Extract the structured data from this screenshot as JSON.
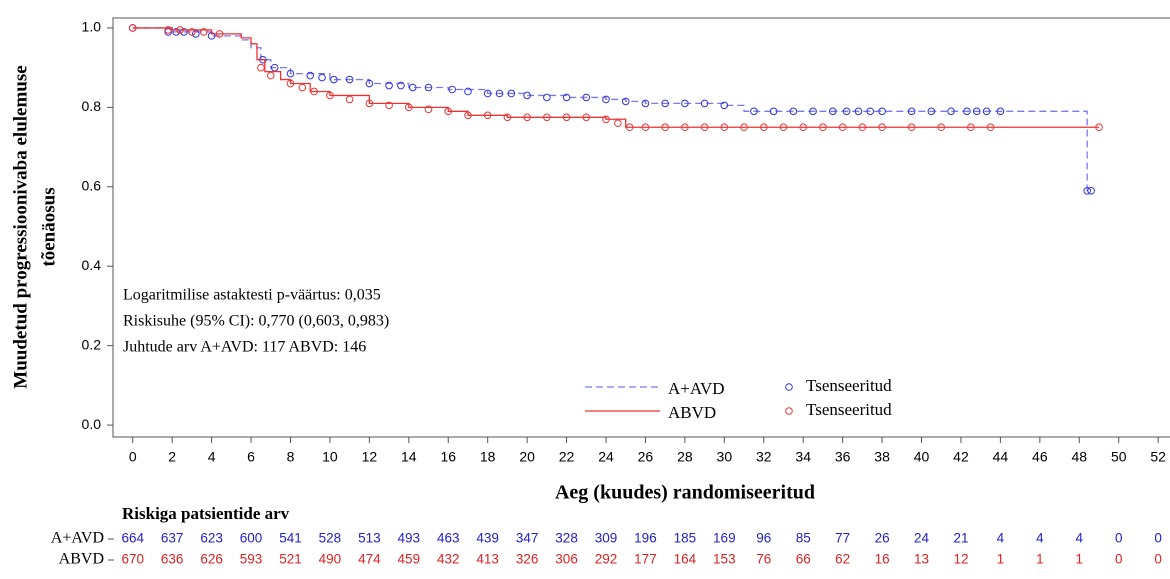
{
  "chart_data": {
    "type": "kaplan-meier",
    "y_label_lines": [
      "Muudetud progressioonivaba elulemuse",
      "tõenäosus"
    ],
    "x_label": "Aeg (kuudes) randomiseeritud",
    "annotations": [
      "Logaritmilise astaktesti p-väärtus: 0,035",
      "Riskisuhe (95% CI): 0,770 (0,603, 0,983)",
      "Juhtude arv A+AVD: 117  ABVD: 146"
    ],
    "xlim": [
      -1,
      52.6
    ],
    "ylim": [
      -0.03,
      1.025
    ],
    "xticks": [
      0,
      2,
      4,
      6,
      8,
      10,
      12,
      14,
      16,
      18,
      20,
      22,
      24,
      26,
      28,
      30,
      32,
      34,
      36,
      38,
      40,
      42,
      44,
      46,
      48,
      50,
      52
    ],
    "yticks": [
      {
        "value": 0,
        "label": "0.0"
      },
      0.2,
      0.4,
      0.6,
      0.8,
      {
        "value": 1,
        "label": "1.0"
      }
    ],
    "series": [
      {
        "name": "A+AVD",
        "color": "#7a7af0",
        "dash": true,
        "x": [
          0,
          2,
          4,
          5.5,
          6,
          6.5,
          7,
          8,
          10,
          12,
          14,
          16,
          18,
          20,
          22,
          24,
          25,
          26,
          30,
          31,
          48.4,
          48.6
        ],
        "values": [
          1,
          0.99,
          0.98,
          0.97,
          0.95,
          0.92,
          0.9,
          0.885,
          0.87,
          0.86,
          0.85,
          0.845,
          0.835,
          0.83,
          0.825,
          0.82,
          0.815,
          0.81,
          0.805,
          0.79,
          0.59,
          0.59
        ],
        "censored": {
          "name": "Tsenseeritud",
          "color": "#3333dd",
          "x": [
            0,
            1.8,
            2.2,
            2.6,
            3.2,
            4,
            6.6,
            7.2,
            8,
            9,
            9.6,
            10.2,
            11,
            12,
            13,
            13.6,
            14.2,
            15,
            16.2,
            17,
            18,
            18.6,
            19.2,
            20,
            21,
            22,
            23,
            24,
            25,
            26,
            27,
            28,
            29,
            30,
            31.5,
            32.5,
            33.5,
            34.5,
            35.5,
            36.2,
            36.8,
            37.4,
            38,
            39.5,
            40.5,
            41.5,
            42.3,
            42.8,
            43.3,
            44,
            48.4,
            48.6
          ],
          "values": [
            1,
            0.99,
            0.99,
            0.99,
            0.985,
            0.98,
            0.92,
            0.9,
            0.885,
            0.88,
            0.875,
            0.87,
            0.87,
            0.86,
            0.855,
            0.855,
            0.85,
            0.85,
            0.845,
            0.84,
            0.835,
            0.835,
            0.835,
            0.83,
            0.825,
            0.825,
            0.825,
            0.82,
            0.815,
            0.81,
            0.81,
            0.81,
            0.81,
            0.805,
            0.79,
            0.79,
            0.79,
            0.79,
            0.79,
            0.79,
            0.79,
            0.79,
            0.79,
            0.79,
            0.79,
            0.79,
            0.79,
            0.79,
            0.79,
            0.79,
            0.59,
            0.59
          ]
        },
        "at_risk_color": "#2222cc",
        "at_risk": [
          664,
          637,
          623,
          600,
          541,
          528,
          513,
          493,
          463,
          439,
          347,
          328,
          309,
          196,
          185,
          169,
          96,
          85,
          77,
          26,
          24,
          21,
          4,
          4,
          4,
          0,
          0
        ]
      },
      {
        "name": "ABVD",
        "color": "#ee3333",
        "dash": false,
        "x": [
          0,
          2,
          4,
          5.5,
          6,
          6.3,
          6.7,
          7.5,
          8,
          9,
          10,
          12,
          14,
          16,
          17,
          19,
          24,
          25,
          49
        ],
        "values": [
          1,
          0.995,
          0.985,
          0.975,
          0.96,
          0.92,
          0.89,
          0.87,
          0.86,
          0.84,
          0.83,
          0.81,
          0.8,
          0.79,
          0.78,
          0.775,
          0.77,
          0.75,
          0.75
        ],
        "censored": {
          "name": "Tsenseeritud",
          "color": "#ee3333",
          "x": [
            0,
            1.8,
            2.4,
            3,
            3.6,
            4.4,
            6.5,
            7,
            8,
            8.6,
            9.2,
            10,
            11,
            12,
            13,
            14,
            15,
            16,
            17,
            18,
            19,
            20,
            21,
            22,
            23,
            24,
            24.6,
            25.2,
            26,
            27,
            28,
            29,
            30,
            31,
            32,
            33,
            34,
            35,
            36,
            37,
            38,
            39.5,
            41,
            42.5,
            43.5,
            49
          ],
          "values": [
            1,
            0.995,
            0.995,
            0.99,
            0.99,
            0.985,
            0.9,
            0.88,
            0.86,
            0.85,
            0.84,
            0.83,
            0.82,
            0.81,
            0.805,
            0.8,
            0.795,
            0.79,
            0.78,
            0.78,
            0.775,
            0.775,
            0.775,
            0.775,
            0.775,
            0.77,
            0.76,
            0.75,
            0.75,
            0.75,
            0.75,
            0.75,
            0.75,
            0.75,
            0.75,
            0.75,
            0.75,
            0.75,
            0.75,
            0.75,
            0.75,
            0.75,
            0.75,
            0.75,
            0.75,
            0.75
          ]
        },
        "at_risk_color": "#dd2222",
        "at_risk": [
          670,
          636,
          626,
          593,
          521,
          490,
          474,
          459,
          432,
          413,
          326,
          306,
          292,
          177,
          164,
          153,
          76,
          66,
          62,
          16,
          13,
          12,
          1,
          1,
          1,
          0,
          0
        ]
      }
    ],
    "at_risk_title": "Riskiga patsientide arv"
  }
}
